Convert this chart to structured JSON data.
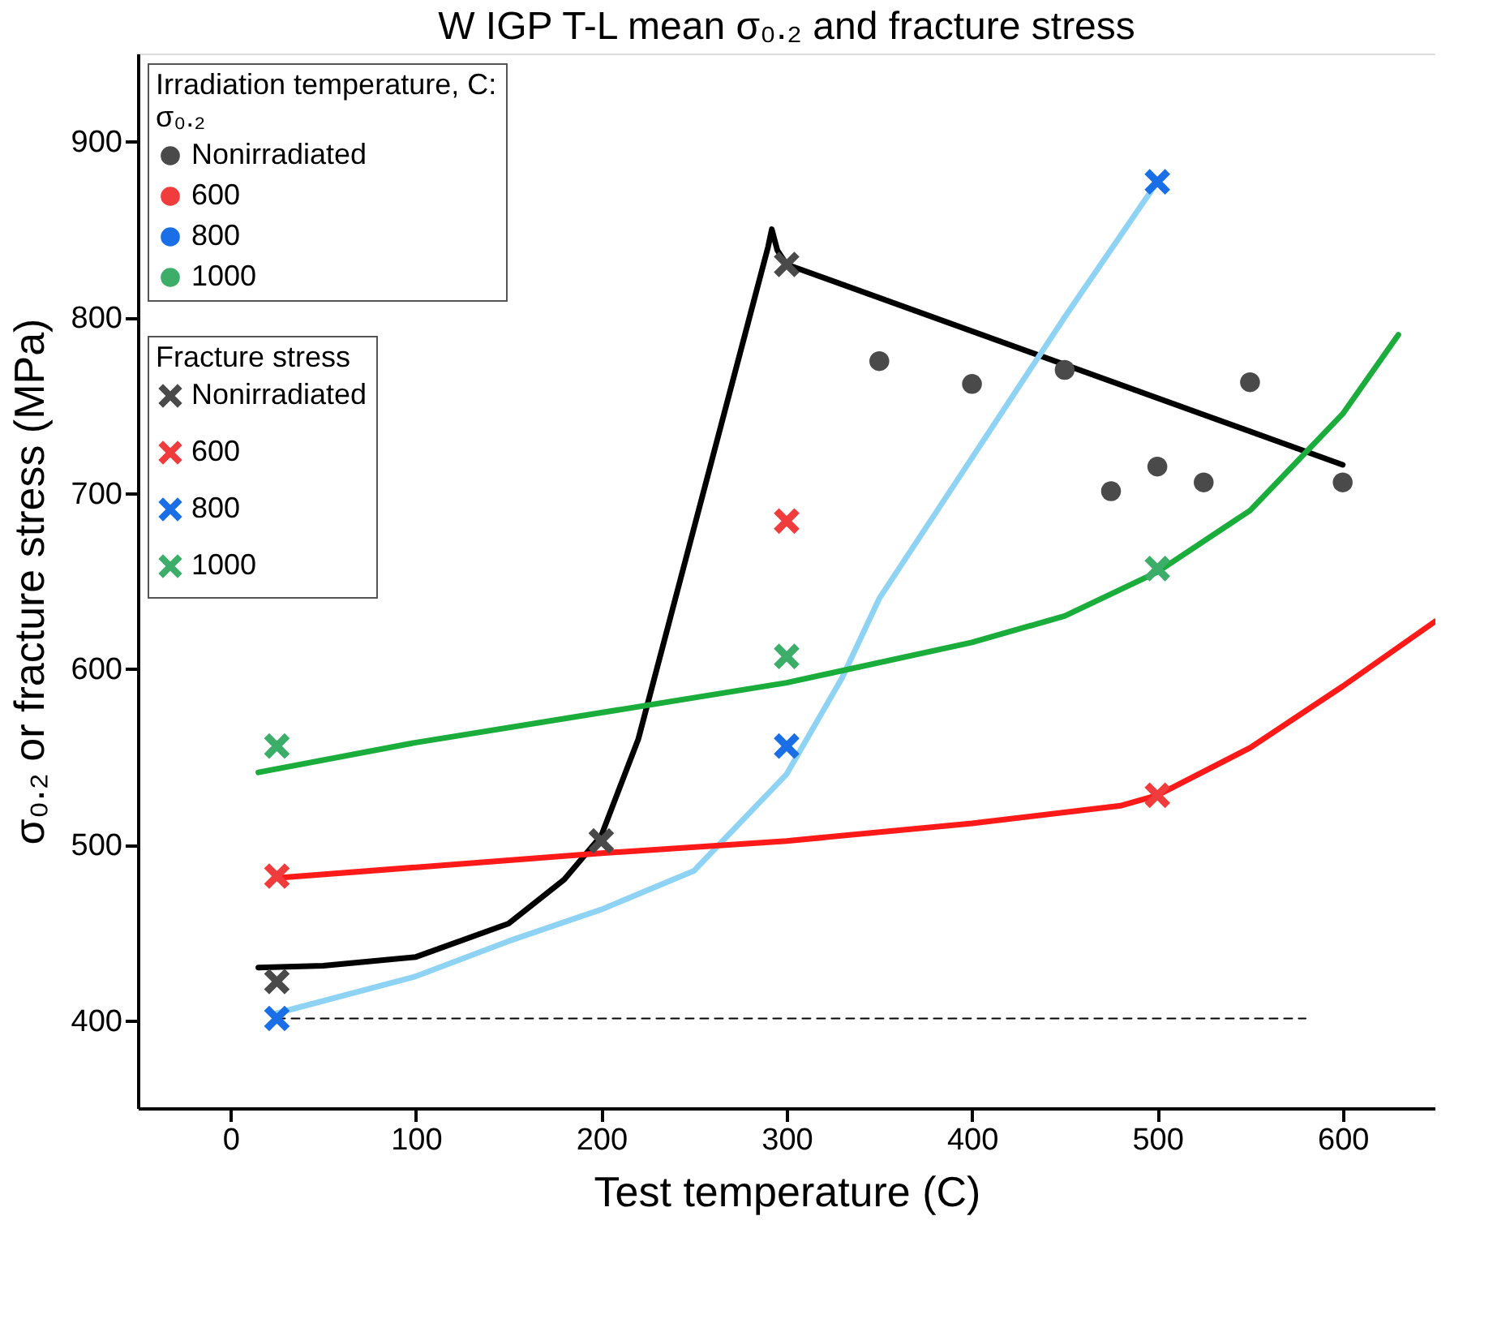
{
  "chart_data": {
    "type": "scatter",
    "title": "W IGP T-L mean σ₀.₂ and fracture stress",
    "xlabel": "Test temperature (C)",
    "ylabel": "σ₀.₂ or fracture stress (MPa)",
    "legend_title": "Irradiation temperature, C:",
    "annotations": [
      "σ₀.₂",
      "Fracture stress"
    ],
    "xlim": [
      -50,
      650
    ],
    "xticks": [
      0,
      100,
      200,
      300,
      400,
      500,
      600
    ],
    "ylim": [
      350,
      950
    ],
    "yticks": [
      400,
      500,
      600,
      700,
      800,
      900
    ],
    "grid": false,
    "legend": "top left",
    "series": [
      {
        "type": "line",
        "color": "#000000",
        "x": [
          25,
          580
        ],
        "values": [
          401,
          401
        ],
        "line_style": "dashed"
      },
      {
        "type": "line",
        "color": "#000000",
        "x": [
          15,
          50,
          100,
          150,
          180,
          200,
          220,
          240,
          260,
          280,
          290,
          292,
          295,
          300,
          600
        ],
        "values": [
          430,
          431,
          436,
          455,
          480,
          505,
          560,
          640,
          720,
          800,
          840,
          850,
          838,
          830,
          716
        ]
      },
      {
        "type": "line",
        "color": "#8fd3f4",
        "x": [
          25,
          100,
          150,
          200,
          250,
          300,
          330,
          350,
          400,
          450,
          500
        ],
        "values": [
          404,
          425,
          445,
          463,
          485,
          540,
          595,
          640,
          720,
          800,
          877
        ]
      },
      {
        "type": "line",
        "color": "#ff1a1a",
        "x": [
          25,
          100,
          200,
          300,
          400,
          480,
          500,
          550,
          600,
          650
        ],
        "values": [
          481,
          487,
          495,
          502,
          512,
          522,
          528,
          555,
          590,
          627
        ]
      },
      {
        "type": "line",
        "color": "#1aad3c",
        "x": [
          15,
          100,
          200,
          300,
          400,
          450,
          500,
          550,
          600,
          630
        ],
        "values": [
          541,
          558,
          575,
          592,
          615,
          630,
          655,
          690,
          745,
          790
        ]
      },
      {
        "name": "Nonirradiated",
        "marker": "circle",
        "color": "#4a4a4a",
        "x": [
          350,
          400,
          450,
          475,
          500,
          525,
          550,
          600
        ],
        "values": [
          775,
          762,
          770,
          701,
          715,
          706,
          763,
          706
        ]
      },
      {
        "name": "600",
        "marker": "circle",
        "color": "#f03c3c"
      },
      {
        "name": "800",
        "marker": "circle",
        "color": "#1a6ee6"
      },
      {
        "name": "1000",
        "marker": "circle",
        "color": "#3cae6a"
      },
      {
        "name": "Nonirradiated",
        "marker": "cross",
        "color": "#4a4a4a",
        "x": [
          25,
          200,
          300
        ],
        "values": [
          422,
          502,
          830
        ]
      },
      {
        "name": "600",
        "marker": "cross",
        "color": "#f03c3c",
        "x": [
          25,
          300,
          500
        ],
        "values": [
          482,
          684,
          528
        ]
      },
      {
        "name": "800",
        "marker": "cross",
        "color": "#1a6ee6",
        "x": [
          25,
          300,
          500
        ],
        "values": [
          401,
          556,
          877
        ]
      },
      {
        "name": "1000",
        "marker": "cross",
        "color": "#3cae6a",
        "x": [
          25,
          300,
          500
        ],
        "values": [
          556,
          607,
          657
        ]
      }
    ]
  }
}
